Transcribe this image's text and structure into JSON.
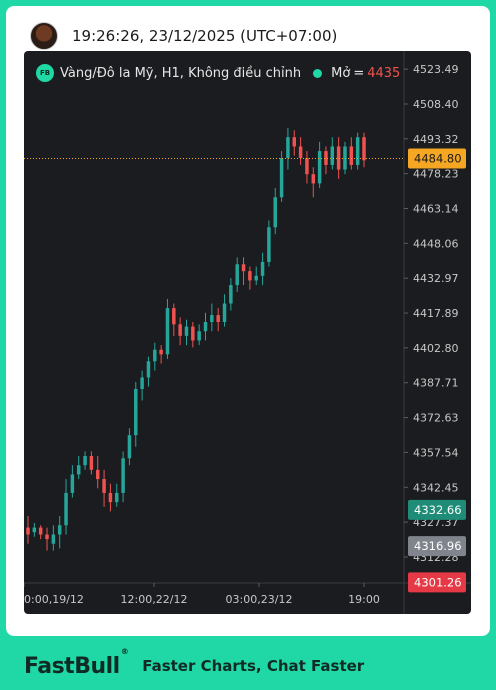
{
  "header": {
    "timestamp": "19:26:26, 23/12/2025 (UTC+07:00)"
  },
  "legend": {
    "symbol_badge": "FB",
    "title": "Vàng/Đô la Mỹ, H1, Không điều chỉnh",
    "open_label": "Mở",
    "open_eq": "=",
    "open_value": "4435"
  },
  "footer": {
    "brand": "FastBull",
    "brand_mark": "®",
    "tagline": "Faster Charts, Chat Faster"
  },
  "colors": {
    "up": "#26a69a",
    "down": "#ef5350",
    "background": "#1b1c1f",
    "accent": "#1fd8a6"
  },
  "chart_data": {
    "type": "candlestick",
    "title": "Vàng/Đô la Mỹ, H1, Không điều chỉnh",
    "ylim": [
      4301,
      4527
    ],
    "y_ticks": [
      4523.49,
      4508.4,
      4493.32,
      4478.23,
      4463.14,
      4448.06,
      4432.97,
      4417.89,
      4402.8,
      4387.71,
      4372.63,
      4357.54,
      4342.45,
      4327.37,
      4312.28
    ],
    "x_ticks": [
      "0:00,19/12",
      "12:00,22/12",
      "03:00,23/12",
      "19:00"
    ],
    "price_labels": [
      {
        "value": "4484.80",
        "color": "#f5a623",
        "text_color": "#1a1a1a"
      },
      {
        "value": "4332.66",
        "color": "#1e8c76",
        "text_color": "#ffffff"
      },
      {
        "value": "4316.96",
        "color": "#80848d",
        "text_color": "#ffffff"
      },
      {
        "value": "4301.26",
        "color": "#e53945",
        "text_color": "#ffffff"
      }
    ],
    "current_price": 4484.8,
    "candles": [
      [
        4325,
        4322,
        4330,
        4318
      ],
      [
        4323,
        4325,
        4327,
        4321
      ],
      [
        4325,
        4322,
        4326,
        4320
      ],
      [
        4322,
        4320,
        4325,
        4315
      ],
      [
        4318,
        4322,
        4326,
        4315
      ],
      [
        4322,
        4326,
        4330,
        4316
      ],
      [
        4326,
        4340,
        4346,
        4322
      ],
      [
        4340,
        4348,
        4352,
        4338
      ],
      [
        4348,
        4352,
        4356,
        4346
      ],
      [
        4352,
        4356,
        4358,
        4350
      ],
      [
        4356,
        4350,
        4358,
        4348
      ],
      [
        4350,
        4346,
        4356,
        4342
      ],
      [
        4346,
        4340,
        4350,
        4334
      ],
      [
        4340,
        4336,
        4344,
        4332
      ],
      [
        4336,
        4340,
        4344,
        4334
      ],
      [
        4340,
        4355,
        4358,
        4336
      ],
      [
        4355,
        4365,
        4368,
        4352
      ],
      [
        4365,
        4385,
        4388,
        4360
      ],
      [
        4385,
        4390,
        4393,
        4380
      ],
      [
        4390,
        4397,
        4399,
        4386
      ],
      [
        4397,
        4402,
        4405,
        4393
      ],
      [
        4402,
        4400,
        4404,
        4396
      ],
      [
        4400,
        4420,
        4424,
        4398
      ],
      [
        4420,
        4413,
        4422,
        4408
      ],
      [
        4413,
        4408,
        4416,
        4404
      ],
      [
        4408,
        4412,
        4415,
        4404
      ],
      [
        4412,
        4406,
        4414,
        4403
      ],
      [
        4406,
        4410,
        4413,
        4404
      ],
      [
        4410,
        4414,
        4418,
        4406
      ],
      [
        4414,
        4417,
        4422,
        4410
      ],
      [
        4417,
        4414,
        4420,
        4410
      ],
      [
        4414,
        4422,
        4426,
        4412
      ],
      [
        4422,
        4430,
        4433,
        4419
      ],
      [
        4430,
        4439,
        4442,
        4427
      ],
      [
        4439,
        4436,
        4442,
        4430
      ],
      [
        4436,
        4432,
        4438,
        4428
      ],
      [
        4432,
        4434,
        4438,
        4430
      ],
      [
        4434,
        4440,
        4444,
        4430
      ],
      [
        4440,
        4455,
        4458,
        4438
      ],
      [
        4455,
        4468,
        4472,
        4452
      ],
      [
        4468,
        4485,
        4488,
        4466
      ],
      [
        4485,
        4494,
        4498,
        4480
      ],
      [
        4494,
        4490,
        4497,
        4486
      ],
      [
        4490,
        4485,
        4494,
        4482
      ],
      [
        4485,
        4478,
        4488,
        4474
      ],
      [
        4478,
        4474,
        4481,
        4468
      ],
      [
        4474,
        4488,
        4492,
        4472
      ],
      [
        4488,
        4482,
        4490,
        4478
      ],
      [
        4482,
        4490,
        4494,
        4480
      ],
      [
        4490,
        4480,
        4494,
        4476
      ],
      [
        4480,
        4490,
        4492,
        4478
      ],
      [
        4490,
        4482,
        4494,
        4480
      ],
      [
        4482,
        4494,
        4496,
        4480
      ],
      [
        4494,
        4484,
        4496,
        4481
      ]
    ]
  }
}
